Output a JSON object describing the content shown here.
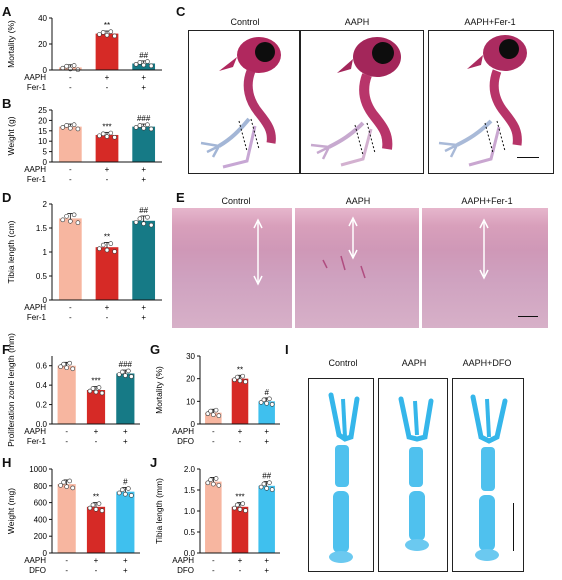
{
  "panels": {
    "A": "A",
    "B": "B",
    "C": "C",
    "D": "D",
    "E": "E",
    "F": "F",
    "G": "G",
    "H": "H",
    "I": "I",
    "J": "J"
  },
  "colors": {
    "control": "#f7b6a0",
    "aaph": "#d62a26",
    "fer1": "#167a86",
    "dfo": "#3fc0ee"
  },
  "group_rows": {
    "aaph_label": "AAPH",
    "fer1_label": "Fer-1",
    "dfo_label": "DFO",
    "aaph_signs": [
      "-",
      "+",
      "+"
    ],
    "treat_signs": [
      "-",
      "-",
      "+"
    ]
  },
  "panel_C": {
    "captions": [
      "Control",
      "AAPH",
      "AAPH+Fer-1"
    ]
  },
  "panel_E": {
    "captions": [
      "Control",
      "AAPH",
      "AAPH+Fer-1"
    ]
  },
  "panel_I": {
    "captions": [
      "Control",
      "AAPH",
      "AAPH+DFO"
    ]
  },
  "chart_data": [
    {
      "panel": "A",
      "type": "bar",
      "ylabel": "Mortality (%)",
      "ylim": [
        0,
        40
      ],
      "yticks": [
        0,
        20,
        40
      ],
      "values": [
        2,
        28,
        5
      ],
      "sig": [
        "",
        "**",
        "##"
      ],
      "treat": "Fer-1"
    },
    {
      "panel": "B",
      "type": "bar",
      "ylabel": "Weight (g)",
      "ylim": [
        0,
        25
      ],
      "yticks": [
        0,
        5,
        10,
        15,
        20,
        25
      ],
      "values": [
        17,
        13,
        17
      ],
      "sig": [
        "",
        "***",
        "###"
      ],
      "treat": "Fer-1"
    },
    {
      "panel": "D",
      "type": "bar",
      "ylabel": "Tibia length (cm)",
      "ylim": [
        0,
        2.0
      ],
      "yticks": [
        0,
        0.5,
        1.0,
        1.5,
        2.0
      ],
      "yticklabels": [
        "0",
        "0.5",
        "1",
        "1.5",
        "2"
      ],
      "values": [
        1.7,
        1.1,
        1.65
      ],
      "sig": [
        "",
        "**",
        "##"
      ],
      "treat": "Fer-1"
    },
    {
      "panel": "F",
      "type": "bar",
      "ylabel": "Proliferation zone length (mm)",
      "ylim": [
        0,
        0.7
      ],
      "yticks": [
        0,
        0.2,
        0.4,
        0.6
      ],
      "yticklabels": [
        "0.0",
        "0.2",
        "0.4",
        "0.6"
      ],
      "values": [
        0.6,
        0.35,
        0.52
      ],
      "sig": [
        "",
        "***",
        "###"
      ],
      "treat": "Fer-1"
    },
    {
      "panel": "G",
      "type": "bar",
      "ylabel": "Mortality (%)",
      "ylim": [
        0,
        30
      ],
      "yticks": [
        0,
        10,
        20,
        30
      ],
      "values": [
        5,
        20,
        10
      ],
      "sig": [
        "",
        "**",
        "#"
      ],
      "treat": "DFO"
    },
    {
      "panel": "H",
      "type": "bar",
      "ylabel": "Weight (mg)",
      "ylim": [
        0,
        1000
      ],
      "yticks": [
        0,
        200,
        400,
        600,
        800,
        1000
      ],
      "values": [
        820,
        550,
        730
      ],
      "sig": [
        "",
        "**",
        "#"
      ],
      "treat": "DFO"
    },
    {
      "panel": "J",
      "type": "bar",
      "ylabel": "Tibia length (mm)",
      "ylim": [
        0,
        2.0
      ],
      "yticks": [
        0,
        0.5,
        1.0,
        1.5,
        2.0
      ],
      "yticklabels": [
        "0.0",
        "0.5",
        "1.0",
        "1.5",
        "2.0"
      ],
      "values": [
        1.7,
        1.1,
        1.6
      ],
      "sig": [
        "",
        "***",
        "##"
      ],
      "treat": "DFO"
    }
  ]
}
